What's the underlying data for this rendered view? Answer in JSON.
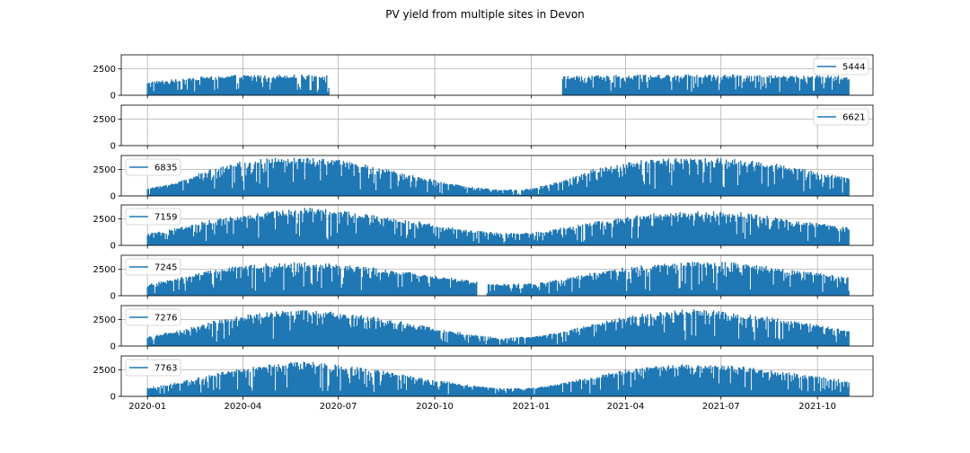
{
  "chart_data": {
    "type": "area",
    "title": "PV yield from multiple sites in Devon",
    "x_tick_labels": [
      "2020-01",
      "2020-04",
      "2020-07",
      "2020-10",
      "2021-01",
      "2021-04",
      "2021-07",
      "2021-10"
    ],
    "x_ticks": [
      "2020-01-01",
      "2020-04-01",
      "2020-07-01",
      "2020-10-01",
      "2021-01-01",
      "2021-04-01",
      "2021-07-01",
      "2021-10-01"
    ],
    "xlim": [
      "2019-12-07",
      "2021-11-23"
    ],
    "ylim": [
      0,
      3800
    ],
    "y_ticks": [
      0,
      2500
    ],
    "y_tick_labels": [
      "0",
      "2500"
    ],
    "grid": true,
    "series_color": "#1f77b4",
    "series": [
      {
        "name": "5444",
        "legend": "upper right",
        "segments": [
          {
            "start": "2020-01-01",
            "end": "2020-06-22"
          },
          {
            "start": "2021-01-31",
            "end": "2021-10-31"
          }
        ],
        "envelope": [
          {
            "date": "2020-01-01",
            "value": 1300
          },
          {
            "date": "2020-02-01",
            "value": 1550
          },
          {
            "date": "2020-03-01",
            "value": 1850
          },
          {
            "date": "2020-04-01",
            "value": 1950
          },
          {
            "date": "2020-05-01",
            "value": 1950
          },
          {
            "date": "2020-06-22",
            "value": 1950
          },
          {
            "date": "2021-01-31",
            "value": 1800
          },
          {
            "date": "2021-04-01",
            "value": 1950
          },
          {
            "date": "2021-07-01",
            "value": 1950
          },
          {
            "date": "2021-10-31",
            "value": 1850
          }
        ]
      },
      {
        "name": "6621",
        "legend": "upper right",
        "segments": [],
        "envelope": []
      },
      {
        "name": "6835",
        "legend": "upper left",
        "segments": [
          {
            "start": "2020-01-01",
            "end": "2021-10-31"
          }
        ],
        "envelope": [
          {
            "date": "2020-01-01",
            "value": 700
          },
          {
            "date": "2020-02-01",
            "value": 1400
          },
          {
            "date": "2020-03-01",
            "value": 2600
          },
          {
            "date": "2020-04-01",
            "value": 3300
          },
          {
            "date": "2020-05-01",
            "value": 3600
          },
          {
            "date": "2020-06-01",
            "value": 3600
          },
          {
            "date": "2020-07-01",
            "value": 3400
          },
          {
            "date": "2020-08-01",
            "value": 2900
          },
          {
            "date": "2020-09-01",
            "value": 2200
          },
          {
            "date": "2020-10-01",
            "value": 1500
          },
          {
            "date": "2020-11-01",
            "value": 900
          },
          {
            "date": "2020-12-01",
            "value": 600
          },
          {
            "date": "2021-01-01",
            "value": 700
          },
          {
            "date": "2021-02-01",
            "value": 1500
          },
          {
            "date": "2021-03-01",
            "value": 2500
          },
          {
            "date": "2021-04-01",
            "value": 3200
          },
          {
            "date": "2021-05-01",
            "value": 3600
          },
          {
            "date": "2021-06-01",
            "value": 3600
          },
          {
            "date": "2021-07-01",
            "value": 3600
          },
          {
            "date": "2021-08-01",
            "value": 3300
          },
          {
            "date": "2021-09-01",
            "value": 2900
          },
          {
            "date": "2021-10-01",
            "value": 2300
          },
          {
            "date": "2021-10-31",
            "value": 1700
          }
        ]
      },
      {
        "name": "7159",
        "legend": "upper left",
        "segments": [
          {
            "start": "2020-01-01",
            "end": "2021-10-31"
          }
        ],
        "envelope": [
          {
            "date": "2020-01-01",
            "value": 1100
          },
          {
            "date": "2020-02-01",
            "value": 1700
          },
          {
            "date": "2020-03-01",
            "value": 2400
          },
          {
            "date": "2020-04-01",
            "value": 2900
          },
          {
            "date": "2020-05-01",
            "value": 3300
          },
          {
            "date": "2020-06-01",
            "value": 3600
          },
          {
            "date": "2020-07-01",
            "value": 3300
          },
          {
            "date": "2020-08-01",
            "value": 2900
          },
          {
            "date": "2020-09-01",
            "value": 2500
          },
          {
            "date": "2020-10-01",
            "value": 2000
          },
          {
            "date": "2020-11-01",
            "value": 1500
          },
          {
            "date": "2020-12-01",
            "value": 1200
          },
          {
            "date": "2021-01-01",
            "value": 1200
          },
          {
            "date": "2021-02-01",
            "value": 1700
          },
          {
            "date": "2021-03-01",
            "value": 2200
          },
          {
            "date": "2021-04-01",
            "value": 2700
          },
          {
            "date": "2021-05-01",
            "value": 3100
          },
          {
            "date": "2021-06-01",
            "value": 3200
          },
          {
            "date": "2021-07-01",
            "value": 3300
          },
          {
            "date": "2021-08-01",
            "value": 3000
          },
          {
            "date": "2021-09-01",
            "value": 2500
          },
          {
            "date": "2021-10-01",
            "value": 2100
          },
          {
            "date": "2021-10-31",
            "value": 1700
          }
        ]
      },
      {
        "name": "7245",
        "legend": "upper left",
        "segments": [
          {
            "start": "2020-01-01",
            "end": "2020-11-10"
          },
          {
            "start": "2020-11-20",
            "end": "2021-10-31"
          }
        ],
        "envelope": [
          {
            "date": "2020-01-01",
            "value": 1100
          },
          {
            "date": "2020-02-01",
            "value": 1700
          },
          {
            "date": "2020-03-01",
            "value": 2400
          },
          {
            "date": "2020-04-01",
            "value": 2900
          },
          {
            "date": "2020-05-01",
            "value": 3100
          },
          {
            "date": "2020-06-01",
            "value": 3200
          },
          {
            "date": "2020-07-01",
            "value": 3000
          },
          {
            "date": "2020-08-01",
            "value": 2700
          },
          {
            "date": "2020-09-01",
            "value": 2300
          },
          {
            "date": "2020-10-01",
            "value": 1900
          },
          {
            "date": "2020-11-01",
            "value": 1500
          },
          {
            "date": "2020-12-01",
            "value": 1100
          },
          {
            "date": "2021-01-01",
            "value": 1200
          },
          {
            "date": "2021-02-01",
            "value": 1600
          },
          {
            "date": "2021-03-01",
            "value": 2200
          },
          {
            "date": "2021-04-01",
            "value": 2700
          },
          {
            "date": "2021-05-01",
            "value": 3000
          },
          {
            "date": "2021-06-01",
            "value": 3200
          },
          {
            "date": "2021-07-01",
            "value": 3200
          },
          {
            "date": "2021-08-01",
            "value": 3000
          },
          {
            "date": "2021-09-01",
            "value": 2500
          },
          {
            "date": "2021-10-01",
            "value": 2200
          },
          {
            "date": "2021-10-31",
            "value": 1800
          }
        ]
      },
      {
        "name": "7276",
        "legend": "upper left",
        "segments": [
          {
            "start": "2020-01-01",
            "end": "2021-10-31"
          }
        ],
        "envelope": [
          {
            "date": "2020-01-01",
            "value": 900
          },
          {
            "date": "2020-02-01",
            "value": 1500
          },
          {
            "date": "2020-03-01",
            "value": 2300
          },
          {
            "date": "2020-04-01",
            "value": 2900
          },
          {
            "date": "2020-05-01",
            "value": 3300
          },
          {
            "date": "2020-06-01",
            "value": 3400
          },
          {
            "date": "2020-07-01",
            "value": 3200
          },
          {
            "date": "2020-08-01",
            "value": 2800
          },
          {
            "date": "2020-09-01",
            "value": 2300
          },
          {
            "date": "2020-10-01",
            "value": 1700
          },
          {
            "date": "2020-11-01",
            "value": 1200
          },
          {
            "date": "2020-12-01",
            "value": 800
          },
          {
            "date": "2021-01-01",
            "value": 900
          },
          {
            "date": "2021-02-01",
            "value": 1400
          },
          {
            "date": "2021-03-01",
            "value": 2100
          },
          {
            "date": "2021-04-01",
            "value": 2800
          },
          {
            "date": "2021-05-01",
            "value": 3300
          },
          {
            "date": "2021-06-01",
            "value": 3500
          },
          {
            "date": "2021-07-01",
            "value": 3300
          },
          {
            "date": "2021-08-01",
            "value": 3000
          },
          {
            "date": "2021-09-01",
            "value": 2500
          },
          {
            "date": "2021-10-01",
            "value": 2000
          },
          {
            "date": "2021-10-31",
            "value": 1500
          }
        ]
      },
      {
        "name": "7763",
        "legend": "upper left",
        "segments": [
          {
            "start": "2020-01-01",
            "end": "2021-10-31"
          }
        ],
        "envelope": [
          {
            "date": "2020-01-01",
            "value": 800
          },
          {
            "date": "2020-02-01",
            "value": 1400
          },
          {
            "date": "2020-03-01",
            "value": 2100
          },
          {
            "date": "2020-04-01",
            "value": 2700
          },
          {
            "date": "2020-05-01",
            "value": 3100
          },
          {
            "date": "2020-06-01",
            "value": 3300
          },
          {
            "date": "2020-07-01",
            "value": 3000
          },
          {
            "date": "2020-08-01",
            "value": 2600
          },
          {
            "date": "2020-09-01",
            "value": 2100
          },
          {
            "date": "2020-10-01",
            "value": 1600
          },
          {
            "date": "2020-11-01",
            "value": 1100
          },
          {
            "date": "2020-12-01",
            "value": 800
          },
          {
            "date": "2021-01-01",
            "value": 800
          },
          {
            "date": "2021-02-01",
            "value": 1300
          },
          {
            "date": "2021-03-01",
            "value": 1900
          },
          {
            "date": "2021-04-01",
            "value": 2500
          },
          {
            "date": "2021-05-01",
            "value": 2900
          },
          {
            "date": "2021-06-01",
            "value": 3100
          },
          {
            "date": "2021-07-01",
            "value": 3000
          },
          {
            "date": "2021-08-01",
            "value": 2700
          },
          {
            "date": "2021-09-01",
            "value": 2300
          },
          {
            "date": "2021-10-01",
            "value": 1900
          },
          {
            "date": "2021-10-31",
            "value": 1500
          }
        ]
      }
    ]
  }
}
